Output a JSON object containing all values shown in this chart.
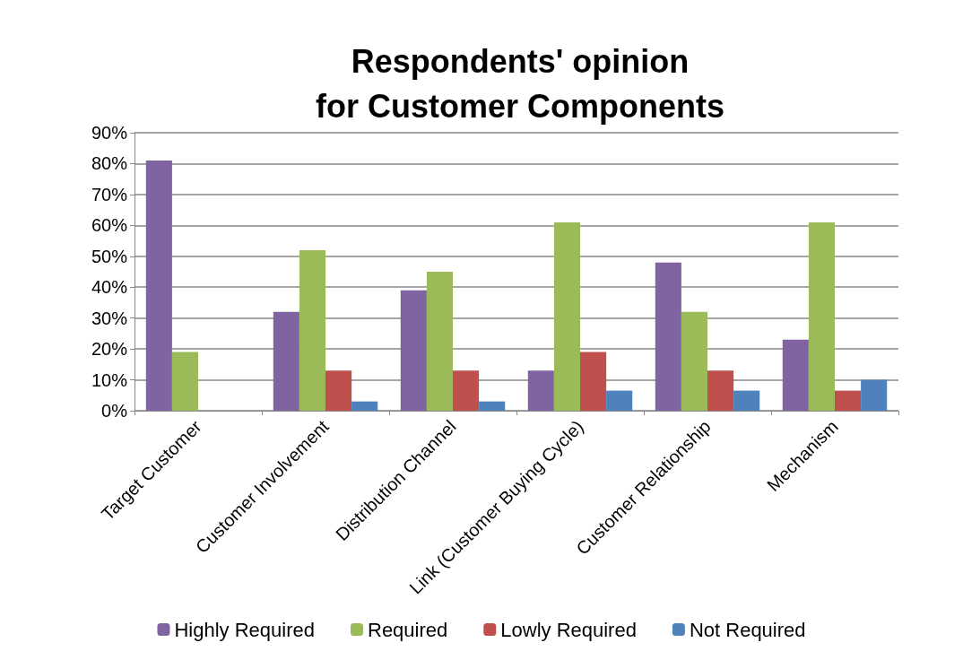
{
  "chart_data": {
    "type": "bar",
    "title": "Respondents' opinion\nfor Customer Components",
    "categories": [
      "Target Customer",
      "Customer Involvement",
      "Distribution Channel",
      "Link (Customer Buying Cycle)",
      "Customer Relationship",
      "Mechanism"
    ],
    "series": [
      {
        "name": "Highly Required",
        "color": "#8064a2",
        "values": [
          81,
          32,
          39,
          13,
          48,
          23
        ]
      },
      {
        "name": "Required",
        "color": "#9bbb59",
        "values": [
          19,
          52,
          45,
          61,
          32,
          61
        ]
      },
      {
        "name": "Lowly Required",
        "color": "#c0504d",
        "values": [
          0,
          13,
          13,
          19,
          13,
          6.5
        ]
      },
      {
        "name": "Not Required",
        "color": "#4f81bd",
        "values": [
          0,
          3,
          3,
          6.5,
          6.5,
          10
        ]
      }
    ],
    "ylim": [
      0,
      90
    ],
    "yticks": [
      {
        "value": 0,
        "label": "0%"
      },
      {
        "value": 10,
        "label": "10%"
      },
      {
        "value": 20,
        "label": "20%"
      },
      {
        "value": 30,
        "label": "30%"
      },
      {
        "value": 40,
        "label": "40%"
      },
      {
        "value": 50,
        "label": "50%"
      },
      {
        "value": 60,
        "label": "60%"
      },
      {
        "value": 70,
        "label": "70%"
      },
      {
        "value": 80,
        "label": "80%"
      },
      {
        "value": 90,
        "label": "90%"
      }
    ],
    "grid": "y",
    "legend": "bottom"
  }
}
